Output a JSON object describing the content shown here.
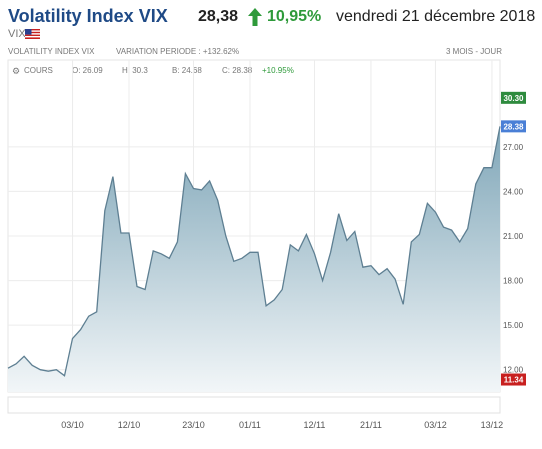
{
  "header": {
    "title": "Volatility Index VIX",
    "price": "28,38",
    "change": "10,95%",
    "date": "vendredi 21 décembre 2018",
    "subtitle": "VIX -",
    "up_color": "#2e9a3a",
    "icons": {
      "arrow": "arrow-up-icon",
      "flag": "us-flag-icon",
      "gear": "gear-icon"
    }
  },
  "info_bar": {
    "name": "VOLATILITY INDEX VIX",
    "variation": "VARIATION PERIODE : +132.62%",
    "period": "3 MOIS - JOUR"
  },
  "ohlc": {
    "series_label": "COURS",
    "open": "O: 26.09",
    "high": "H: 30.3",
    "low": "B: 24.68",
    "close": "C: 28.38",
    "change": "+10.95%"
  },
  "chart_data": {
    "type": "area",
    "ylim": [
      10.5,
      31.5
    ],
    "y_ticks": [
      {
        "value": 12,
        "label": "12.00"
      },
      {
        "value": 15,
        "label": "15.00"
      },
      {
        "value": 18,
        "label": "18.00"
      },
      {
        "value": 21,
        "label": "21.00"
      },
      {
        "value": 24,
        "label": "24.00"
      },
      {
        "value": 27,
        "label": "27.00"
      }
    ],
    "x_ticks": [
      {
        "index": 8,
        "label": "03/10"
      },
      {
        "index": 15,
        "label": "12/10"
      },
      {
        "index": 23,
        "label": "23/10"
      },
      {
        "index": 30,
        "label": "01/11"
      },
      {
        "index": 38,
        "label": "12/11"
      },
      {
        "index": 45,
        "label": "21/11"
      },
      {
        "index": 53,
        "label": "03/12"
      },
      {
        "index": 60,
        "label": "13/12"
      }
    ],
    "values": [
      12.1,
      12.4,
      12.9,
      12.3,
      12.0,
      11.9,
      12.0,
      11.6,
      14.1,
      14.7,
      15.6,
      15.9,
      22.7,
      25.0,
      21.2,
      21.2,
      17.6,
      17.4,
      20.0,
      19.8,
      19.5,
      20.6,
      25.2,
      24.2,
      24.1,
      24.7,
      23.4,
      21.0,
      19.3,
      19.5,
      19.9,
      19.9,
      16.3,
      16.7,
      17.4,
      20.4,
      20.0,
      21.1,
      19.8,
      18.0,
      19.9,
      22.5,
      20.7,
      21.3,
      18.9,
      19.0,
      18.4,
      18.8,
      18.1,
      16.4,
      20.6,
      21.1,
      23.2,
      22.6,
      21.6,
      21.4,
      20.6,
      21.5,
      24.5,
      25.6,
      25.6,
      28.38
    ],
    "markers": [
      {
        "value": 30.3,
        "label": "30.30",
        "color": "#2e8b3e"
      },
      {
        "value": 28.38,
        "label": "28.38",
        "color": "#4a7fd6"
      },
      {
        "value": 11.34,
        "label": "11.34",
        "color": "#c8201f"
      }
    ],
    "line_color": "#5e7f92",
    "fill_top_color": "#7fa6b8",
    "fill_bottom_color": "#f2f6f8",
    "grid": true
  }
}
